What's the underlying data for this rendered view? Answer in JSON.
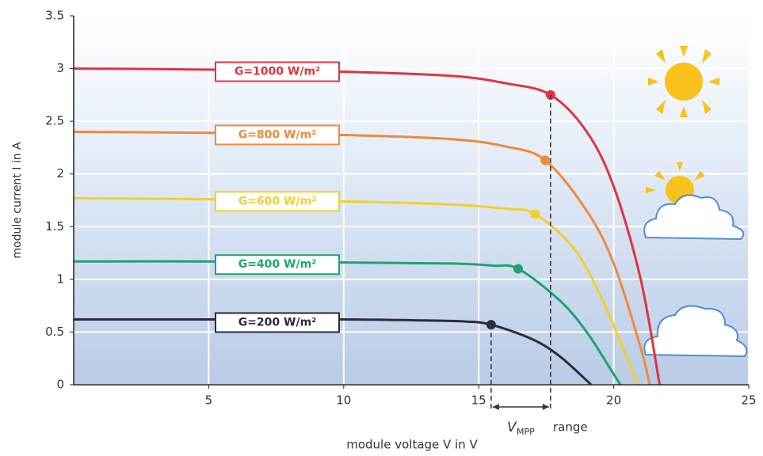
{
  "chart_data": {
    "type": "line",
    "x_label": "module voltage V in V",
    "y_label": "module current I in A",
    "xlim": [
      0,
      25
    ],
    "xticks": [
      5,
      10,
      15,
      20,
      25
    ],
    "ylim": [
      0,
      3.5
    ],
    "yticks": [
      0,
      0.5,
      1,
      1.5,
      2,
      2.5,
      3,
      3.5
    ],
    "grid": true,
    "vmpp_symbol": "V",
    "vmpp_subscript": "MPP",
    "vmpp_range": "range",
    "series": [
      {
        "name": "G=1000 W/m²",
        "color": "#e0343f",
        "x": [
          0,
          5,
          10,
          14,
          16,
          17.66,
          19,
          20,
          21,
          21.7
        ],
        "values": [
          3.0,
          2.99,
          2.97,
          2.93,
          2.86,
          2.75,
          2.4,
          1.88,
          1.0,
          0
        ],
        "mpp": [
          17.66,
          2.75
        ]
      },
      {
        "name": "G=800 W/m²",
        "color": "#ee8a3c",
        "x": [
          0,
          5,
          10,
          14,
          16,
          17.46,
          19,
          20,
          21,
          21.33
        ],
        "values": [
          2.4,
          2.39,
          2.37,
          2.33,
          2.26,
          2.13,
          1.65,
          1.15,
          0.35,
          0
        ],
        "mpp": [
          17.46,
          2.13
        ]
      },
      {
        "name": "G=600 W/m²",
        "color": "#f2cf2a",
        "x": [
          0,
          5,
          10,
          14,
          16,
          17.08,
          18.5,
          19.5,
          20.5,
          20.9
        ],
        "values": [
          1.77,
          1.76,
          1.74,
          1.71,
          1.67,
          1.62,
          1.3,
          0.85,
          0.25,
          0
        ],
        "mpp": [
          17.08,
          1.62
        ]
      },
      {
        "name": "G=400 W/m²",
        "color": "#1fa36f",
        "x": [
          0,
          5,
          10,
          14,
          15.5,
          16.46,
          18,
          19,
          20,
          20.25
        ],
        "values": [
          1.17,
          1.17,
          1.16,
          1.15,
          1.13,
          1.1,
          0.8,
          0.5,
          0.1,
          0
        ],
        "mpp": [
          16.46,
          1.1
        ]
      },
      {
        "name": "G=200 W/m²",
        "color": "#2c2c3a",
        "x": [
          0,
          5,
          10,
          13,
          14.5,
          15.46,
          17,
          18,
          19,
          19.16
        ],
        "values": [
          0.62,
          0.62,
          0.62,
          0.61,
          0.6,
          0.57,
          0.43,
          0.27,
          0.04,
          0
        ],
        "mpp": [
          15.46,
          0.57
        ]
      }
    ]
  }
}
